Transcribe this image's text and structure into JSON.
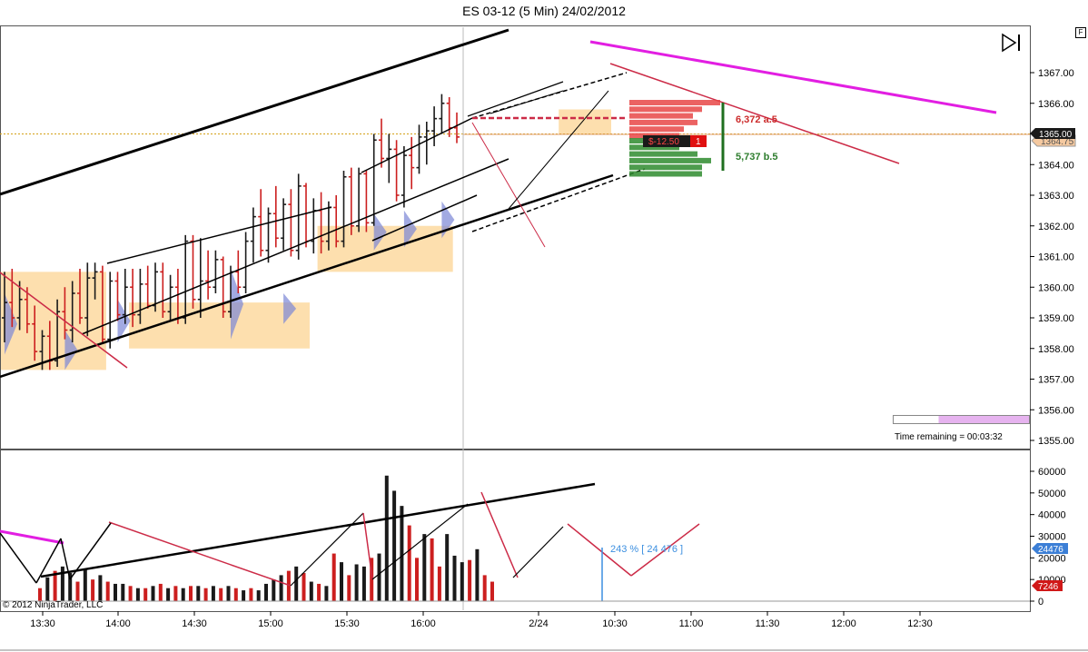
{
  "window": {
    "title": "ES 03-12 (5 Min)  24/02/2012",
    "f_button": "F",
    "copyright": "© 2012 NinjaTrader, LLC",
    "time_remaining": "Time remaining = 00:03:32",
    "price_badge": "1365.00",
    "price_badge_behind": "1364.75",
    "vol_badge": "24476",
    "vol_badge2": "7246",
    "vol_annotation": "243 % [ 24 476 ]",
    "ask_label": "6,372 a.5",
    "bid_label": "5,737 b.5",
    "pnl_label": "$-12.50",
    "pnl_qty": "1"
  },
  "colors": {
    "up": "#1a1a1a",
    "down": "#cc1f1f",
    "value_area": "#fdd9a0",
    "blue_band": "#7b86d6",
    "magenta": "#e21ee2",
    "crimson": "#cc2b47",
    "ask": "#e84747",
    "bid": "#2e8b2e",
    "price_line": "#d4a017",
    "badge_blue": "#3c7fd6"
  },
  "chart_data": [
    {
      "type": "candlestick",
      "title": "ES 03-12 (5 Min)  24/02/2012",
      "xlabel": "",
      "ylabel": "",
      "y_ticks": [
        "1355.00",
        "1356.00",
        "1357.00",
        "1358.00",
        "1359.00",
        "1360.00",
        "1361.00",
        "1362.00",
        "1363.00",
        "1364.00",
        "1365.00",
        "1366.00",
        "1367.00"
      ],
      "ylim": [
        1354.8,
        1368.8
      ],
      "x_ticks": [
        "13:30",
        "14:00",
        "14:30",
        "15:00",
        "15:30",
        "16:00",
        "2/24",
        "10:30",
        "11:00",
        "11:30",
        "12:00",
        "12:30"
      ],
      "last_price": 1365.0,
      "bars": [
        {
          "o": 1359.0,
          "h": 1360.5,
          "l": 1358.2,
          "c": 1359.5
        },
        {
          "o": 1359.5,
          "h": 1360.6,
          "l": 1358.7,
          "c": 1359.0
        },
        {
          "o": 1359.0,
          "h": 1360.2,
          "l": 1358.6,
          "c": 1359.6
        },
        {
          "o": 1359.6,
          "h": 1360.0,
          "l": 1358.5,
          "c": 1358.8
        },
        {
          "o": 1358.8,
          "h": 1359.4,
          "l": 1357.6,
          "c": 1357.9
        },
        {
          "o": 1357.9,
          "h": 1358.6,
          "l": 1357.3,
          "c": 1358.4
        },
        {
          "o": 1358.4,
          "h": 1358.9,
          "l": 1357.3,
          "c": 1357.6
        },
        {
          "o": 1357.6,
          "h": 1359.6,
          "l": 1357.4,
          "c": 1359.2
        },
        {
          "o": 1359.2,
          "h": 1360.0,
          "l": 1358.3,
          "c": 1358.6
        },
        {
          "o": 1358.6,
          "h": 1360.2,
          "l": 1358.2,
          "c": 1359.8
        },
        {
          "o": 1359.8,
          "h": 1360.6,
          "l": 1358.8,
          "c": 1359.0
        },
        {
          "o": 1359.0,
          "h": 1360.8,
          "l": 1358.4,
          "c": 1360.3
        },
        {
          "o": 1360.3,
          "h": 1360.8,
          "l": 1359.6,
          "c": 1360.5
        },
        {
          "o": 1360.5,
          "h": 1360.7,
          "l": 1358.2,
          "c": 1358.3
        },
        {
          "o": 1358.3,
          "h": 1360.5,
          "l": 1358.0,
          "c": 1360.2
        },
        {
          "o": 1360.2,
          "h": 1360.5,
          "l": 1358.9,
          "c": 1359.1
        },
        {
          "o": 1359.1,
          "h": 1360.6,
          "l": 1358.8,
          "c": 1360.0
        },
        {
          "o": 1360.0,
          "h": 1360.6,
          "l": 1358.7,
          "c": 1359.1
        },
        {
          "o": 1359.1,
          "h": 1360.6,
          "l": 1358.8,
          "c": 1360.1
        },
        {
          "o": 1360.1,
          "h": 1360.7,
          "l": 1359.3,
          "c": 1359.4
        },
        {
          "o": 1359.4,
          "h": 1360.8,
          "l": 1359.2,
          "c": 1360.5
        },
        {
          "o": 1360.5,
          "h": 1360.8,
          "l": 1359.0,
          "c": 1359.2
        },
        {
          "o": 1359.2,
          "h": 1360.4,
          "l": 1358.9,
          "c": 1360.0
        },
        {
          "o": 1360.0,
          "h": 1360.6,
          "l": 1358.8,
          "c": 1359.0
        },
        {
          "o": 1359.0,
          "h": 1361.7,
          "l": 1358.8,
          "c": 1361.5
        },
        {
          "o": 1361.5,
          "h": 1361.7,
          "l": 1359.3,
          "c": 1359.6
        },
        {
          "o": 1359.6,
          "h": 1361.6,
          "l": 1359.0,
          "c": 1360.2
        },
        {
          "o": 1360.2,
          "h": 1361.2,
          "l": 1359.6,
          "c": 1360.0
        },
        {
          "o": 1360.0,
          "h": 1361.2,
          "l": 1359.8,
          "c": 1360.9
        },
        {
          "o": 1360.9,
          "h": 1361.0,
          "l": 1359.0,
          "c": 1359.2
        },
        {
          "o": 1359.2,
          "h": 1360.7,
          "l": 1359.0,
          "c": 1360.5
        },
        {
          "o": 1360.5,
          "h": 1361.2,
          "l": 1359.8,
          "c": 1360.0
        },
        {
          "o": 1360.0,
          "h": 1361.8,
          "l": 1359.8,
          "c": 1361.5
        },
        {
          "o": 1361.5,
          "h": 1362.6,
          "l": 1360.8,
          "c": 1362.3
        },
        {
          "o": 1362.3,
          "h": 1363.2,
          "l": 1361.0,
          "c": 1361.2
        },
        {
          "o": 1361.2,
          "h": 1362.6,
          "l": 1360.8,
          "c": 1362.4
        },
        {
          "o": 1362.4,
          "h": 1363.3,
          "l": 1361.3,
          "c": 1361.6
        },
        {
          "o": 1361.6,
          "h": 1362.9,
          "l": 1361.2,
          "c": 1362.7
        },
        {
          "o": 1362.7,
          "h": 1363.2,
          "l": 1361.0,
          "c": 1361.2
        },
        {
          "o": 1361.2,
          "h": 1363.7,
          "l": 1360.9,
          "c": 1363.3
        },
        {
          "o": 1363.3,
          "h": 1363.4,
          "l": 1361.3,
          "c": 1361.5
        },
        {
          "o": 1361.5,
          "h": 1362.9,
          "l": 1361.1,
          "c": 1362.5
        },
        {
          "o": 1362.5,
          "h": 1363.1,
          "l": 1361.1,
          "c": 1361.5
        },
        {
          "o": 1361.5,
          "h": 1362.8,
          "l": 1361.2,
          "c": 1362.6
        },
        {
          "o": 1362.6,
          "h": 1363.0,
          "l": 1361.3,
          "c": 1361.5
        },
        {
          "o": 1361.5,
          "h": 1363.8,
          "l": 1361.3,
          "c": 1363.6
        },
        {
          "o": 1363.6,
          "h": 1363.9,
          "l": 1361.7,
          "c": 1362.0
        },
        {
          "o": 1362.0,
          "h": 1363.9,
          "l": 1361.8,
          "c": 1363.7
        },
        {
          "o": 1363.7,
          "h": 1363.8,
          "l": 1361.8,
          "c": 1362.1
        },
        {
          "o": 1362.1,
          "h": 1365.0,
          "l": 1362.0,
          "c": 1364.8
        },
        {
          "o": 1364.8,
          "h": 1365.5,
          "l": 1363.9,
          "c": 1364.2
        },
        {
          "o": 1364.2,
          "h": 1365.0,
          "l": 1363.4,
          "c": 1364.5
        },
        {
          "o": 1364.5,
          "h": 1364.8,
          "l": 1362.8,
          "c": 1363.0
        },
        {
          "o": 1363.0,
          "h": 1364.6,
          "l": 1362.6,
          "c": 1364.3
        },
        {
          "o": 1364.3,
          "h": 1364.9,
          "l": 1363.2,
          "c": 1363.9
        },
        {
          "o": 1363.9,
          "h": 1365.3,
          "l": 1363.7,
          "c": 1364.9
        },
        {
          "o": 1364.9,
          "h": 1365.4,
          "l": 1364.0,
          "c": 1365.1
        },
        {
          "o": 1365.1,
          "h": 1365.9,
          "l": 1364.6,
          "c": 1365.5
        },
        {
          "o": 1365.5,
          "h": 1366.3,
          "l": 1365.0,
          "c": 1366.0
        },
        {
          "o": 1366.0,
          "h": 1366.2,
          "l": 1364.9,
          "c": 1365.2
        },
        {
          "o": 1365.2,
          "h": 1365.7,
          "l": 1364.7,
          "c": 1364.9
        }
      ],
      "dom_ask_sizes": [
        100,
        80,
        70,
        75,
        60,
        55
      ],
      "dom_bid_sizes": [
        50,
        55,
        75,
        90,
        80,
        80
      ],
      "time_remaining_progress": 0.67
    },
    {
      "type": "bar",
      "y_ticks": [
        "0",
        "10000",
        "20000",
        "30000",
        "40000",
        "50000",
        "60000"
      ],
      "ylim": [
        0,
        65000
      ],
      "volumes": [
        6000,
        11000,
        14000,
        16000,
        13000,
        9000,
        15000,
        10000,
        12000,
        9000,
        8000,
        8000,
        7000,
        6000,
        6000,
        7000,
        8000,
        6000,
        7000,
        6000,
        7000,
        7000,
        6000,
        7000,
        6000,
        7000,
        6000,
        5000,
        6000,
        5000,
        8000,
        10000,
        12000,
        14000,
        16000,
        13000,
        9000,
        8000,
        7000,
        22000,
        18000,
        12000,
        17000,
        16000,
        20000,
        22000,
        58000,
        51000,
        44000,
        35000,
        20000,
        31000,
        29000,
        16000,
        31000,
        21000,
        18000,
        19000,
        24000,
        12000,
        9000
      ],
      "down_flags": [
        1,
        0,
        1,
        0,
        0,
        1,
        0,
        1,
        0,
        1,
        0,
        0,
        1,
        0,
        1,
        0,
        1,
        0,
        1,
        0,
        1,
        0,
        1,
        0,
        1,
        0,
        1,
        0,
        1,
        0,
        0,
        0,
        0,
        1,
        0,
        1,
        0,
        1,
        0,
        1,
        0,
        1,
        0,
        0,
        1,
        0,
        0,
        0,
        0,
        1,
        1,
        0,
        1,
        1,
        0,
        0,
        0,
        1,
        0,
        1,
        1
      ]
    }
  ]
}
